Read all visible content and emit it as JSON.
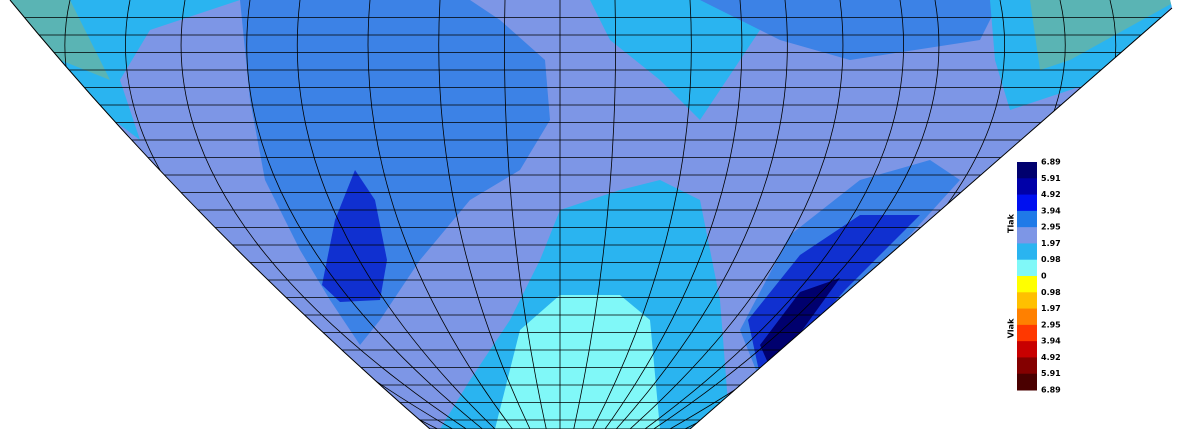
{
  "legend": {
    "upper_label": "Tlak",
    "lower_label": "Vlak",
    "ticks": [
      "6.89",
      "5.91",
      "4.92",
      "3.94",
      "2.95",
      "1.97",
      "0.98",
      "0",
      "0.98",
      "1.97",
      "2.95",
      "3.94",
      "4.92",
      "5.91",
      "6.89"
    ],
    "colors": [
      "#00006e",
      "#0000a8",
      "#0010f0",
      "#1f7ae8",
      "#7d96e6",
      "#2ab4f0",
      "#80f8f8",
      "#ffff00",
      "#ffc000",
      "#ff8000",
      "#ff3800",
      "#c80000",
      "#840000",
      "#4a0000"
    ]
  }
}
